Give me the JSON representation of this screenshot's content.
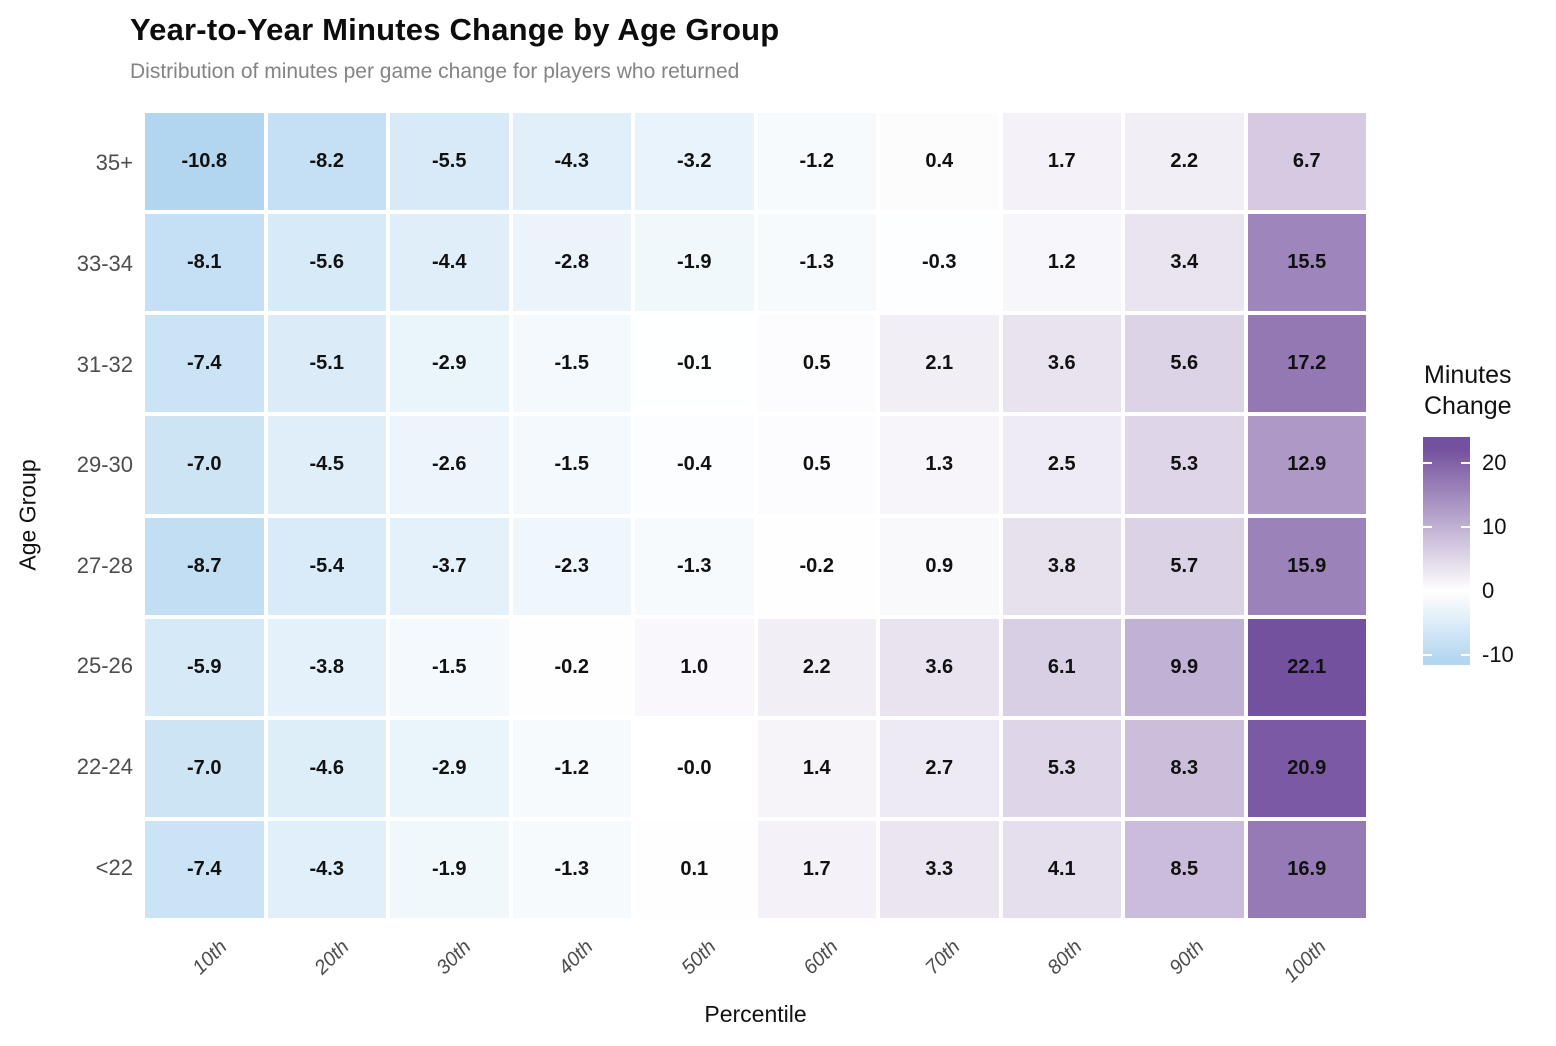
{
  "title": "Year-to-Year Minutes Change by Age Group",
  "subtitle": "Distribution of minutes per game change for players who returned",
  "chart_data": {
    "type": "heatmap",
    "title": "Year-to-Year Minutes Change by Age Group",
    "subtitle": "Distribution of minutes per game change for players who returned",
    "xlabel": "Percentile",
    "ylabel": "Age Group",
    "x_categories": [
      "10th",
      "20th",
      "30th",
      "40th",
      "50th",
      "60th",
      "70th",
      "80th",
      "90th",
      "100th"
    ],
    "y_categories": [
      "35+",
      "33-34",
      "31-32",
      "29-30",
      "27-28",
      "25-26",
      "22-24",
      "<22"
    ],
    "rows": [
      [
        "-10.8",
        "-8.2",
        "-5.5",
        "-4.3",
        "-3.2",
        "-1.2",
        "0.4",
        "1.7",
        "2.2",
        "6.7"
      ],
      [
        "-8.1",
        "-5.6",
        "-4.4",
        "-2.8",
        "-1.9",
        "-1.3",
        "-0.3",
        "1.2",
        "3.4",
        "15.5"
      ],
      [
        "-7.4",
        "-5.1",
        "-2.9",
        "-1.5",
        "-0.1",
        "0.5",
        "2.1",
        "3.6",
        "5.6",
        "17.2"
      ],
      [
        "-7.0",
        "-4.5",
        "-2.6",
        "-1.5",
        "-0.4",
        "0.5",
        "1.3",
        "2.5",
        "5.3",
        "12.9"
      ],
      [
        "-8.7",
        "-5.4",
        "-3.7",
        "-2.3",
        "-1.3",
        "-0.2",
        "0.9",
        "3.8",
        "5.7",
        "15.9"
      ],
      [
        "-5.9",
        "-3.8",
        "-1.5",
        "-0.2",
        "1.0",
        "2.2",
        "3.6",
        "6.1",
        "9.9",
        "22.1"
      ],
      [
        "-7.0",
        "-4.6",
        "-2.9",
        "-1.2",
        "-0.0",
        "1.4",
        "2.7",
        "5.3",
        "8.3",
        "20.9"
      ],
      [
        "-7.4",
        "-4.3",
        "-1.9",
        "-1.3",
        "0.1",
        "1.7",
        "3.3",
        "4.1",
        "8.5",
        "16.9"
      ]
    ],
    "value_domain": [
      -10.8,
      22.1
    ],
    "grid": false,
    "legend": {
      "title": "Minutes Change",
      "position": "right",
      "ticks": [
        {
          "label": "20",
          "value": 20
        },
        {
          "label": "10",
          "value": 10
        },
        {
          "label": "0",
          "value": 0
        },
        {
          "label": "-10",
          "value": -10
        }
      ],
      "bar_value_range": [
        -11.5,
        24
      ]
    },
    "colors": {
      "low": "#b2d6f0",
      "mid": "#ffffff",
      "high": "#74519e"
    }
  }
}
